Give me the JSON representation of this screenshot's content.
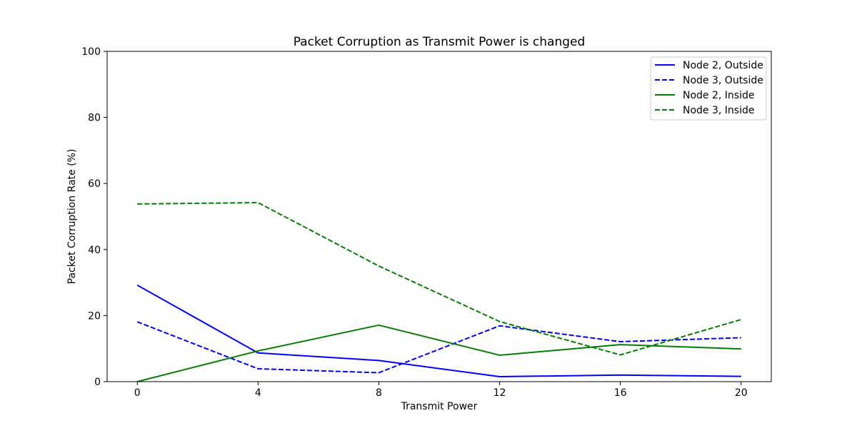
{
  "chart_data": {
    "type": "line",
    "title": "Packet Corruption as Transmit Power is changed",
    "xlabel": "Transmit Power",
    "ylabel": "Packet Corruption Rate (%)",
    "x": [
      0,
      4,
      8,
      12,
      16,
      20
    ],
    "xticks": [
      "0",
      "4",
      "8",
      "12",
      "16",
      "20"
    ],
    "yticks": [
      "0",
      "20",
      "40",
      "60",
      "80",
      "100"
    ],
    "xlim": [
      -1,
      21
    ],
    "ylim": [
      0,
      100
    ],
    "grid": false,
    "legend_position": "top-right",
    "series": [
      {
        "name": "Node 2, Outside",
        "color": "#0000ff",
        "style": "solid",
        "values": [
          29.2,
          8.7,
          6.4,
          1.5,
          2.0,
          1.6
        ]
      },
      {
        "name": "Node 3, Outside",
        "color": "#0000ff",
        "style": "dashed",
        "values": [
          18.1,
          3.9,
          2.7,
          16.9,
          12.1,
          13.3
        ]
      },
      {
        "name": "Node 2, Inside",
        "color": "#008000",
        "style": "solid",
        "values": [
          0.0,
          9.3,
          17.1,
          8.0,
          11.2,
          9.9
        ]
      },
      {
        "name": "Node 3, Inside",
        "color": "#008000",
        "style": "dashed",
        "values": [
          53.8,
          54.2,
          35.0,
          18.2,
          8.1,
          18.8
        ]
      }
    ]
  }
}
